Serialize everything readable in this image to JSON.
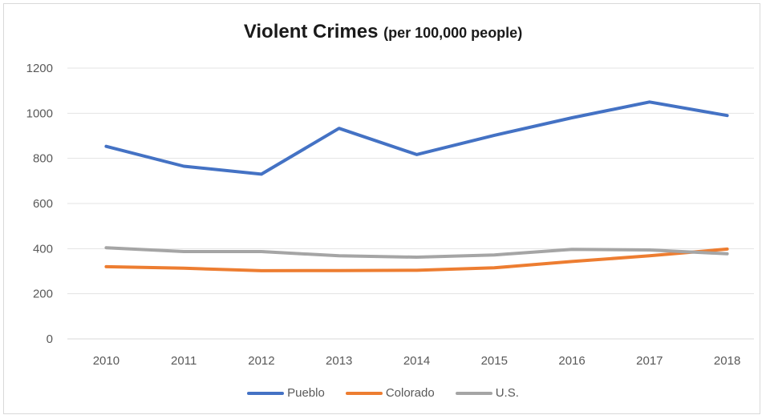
{
  "chart_data": {
    "type": "line",
    "title": "Violent Crimes",
    "subtitle": "(per 100,000 people)",
    "xlabel": "",
    "ylabel": "",
    "categories": [
      "2010",
      "2011",
      "2012",
      "2013",
      "2014",
      "2015",
      "2016",
      "2017",
      "2018"
    ],
    "ylim": [
      0,
      1200
    ],
    "yticks": [
      0,
      200,
      400,
      600,
      800,
      1000,
      1200
    ],
    "grid": true,
    "legend_position": "bottom",
    "series": [
      {
        "name": "Pueblo",
        "color": "#4472c4",
        "values": [
          853,
          765,
          730,
          933,
          817,
          902,
          980,
          1050,
          990
        ]
      },
      {
        "name": "Colorado",
        "color": "#ed7d31",
        "values": [
          320,
          313,
          302,
          303,
          304,
          315,
          343,
          368,
          398
        ]
      },
      {
        "name": "U.S.",
        "color": "#a5a5a5",
        "values": [
          404,
          387,
          387,
          368,
          362,
          372,
          397,
          394,
          377
        ]
      }
    ]
  }
}
